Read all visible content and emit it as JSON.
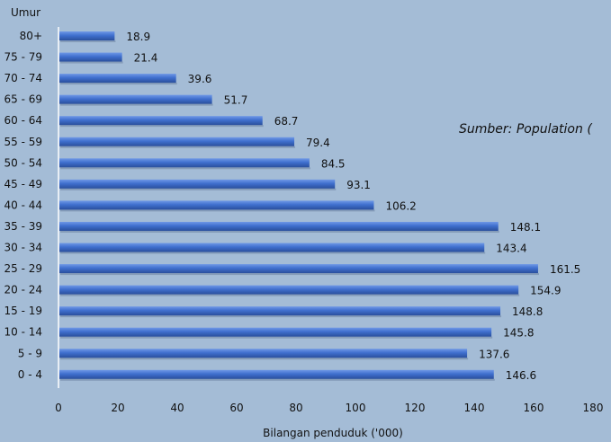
{
  "chart_data": {
    "type": "bar",
    "orientation": "horizontal",
    "ylabel": "Umur",
    "xlabel": "Bilangan penduduk ('000)",
    "categories": [
      "80+",
      "75 - 79",
      "70 - 74",
      "65 - 69",
      "60 - 64",
      "55 - 59",
      "50 - 54",
      "45 - 49",
      "40 - 44",
      "35 - 39",
      "30 - 34",
      "25 - 29",
      "20 - 24",
      "15 - 19",
      "10 - 14",
      "5 - 9",
      "0 - 4"
    ],
    "values": [
      18.9,
      21.4,
      39.6,
      51.7,
      68.7,
      79.4,
      84.5,
      93.1,
      106.2,
      148.1,
      143.4,
      161.5,
      154.9,
      148.8,
      145.8,
      137.6,
      146.6
    ],
    "value_labels": [
      "18.9",
      "21.4",
      "39.6",
      "51.7",
      "68.7",
      "79.4",
      "84.5",
      "93.1",
      "106.2",
      "148.1",
      "143.4",
      "161.5",
      "154.9",
      "148.8",
      "145.8",
      "137.6",
      "146.6"
    ],
    "xlim": [
      0,
      180
    ],
    "xticks": [
      "0",
      "20",
      "40",
      "60",
      "80",
      "100",
      "120",
      "140",
      "160",
      "180"
    ],
    "annotation": "Sumber: Population (",
    "grid": false,
    "legend": "none"
  },
  "colors": {
    "background": "#a4bcd6",
    "bar": "#3f6fce",
    "bar_highlight": "#6f98e6",
    "bar_shadow": "#2a4f9c",
    "axis": "#ffffff"
  }
}
